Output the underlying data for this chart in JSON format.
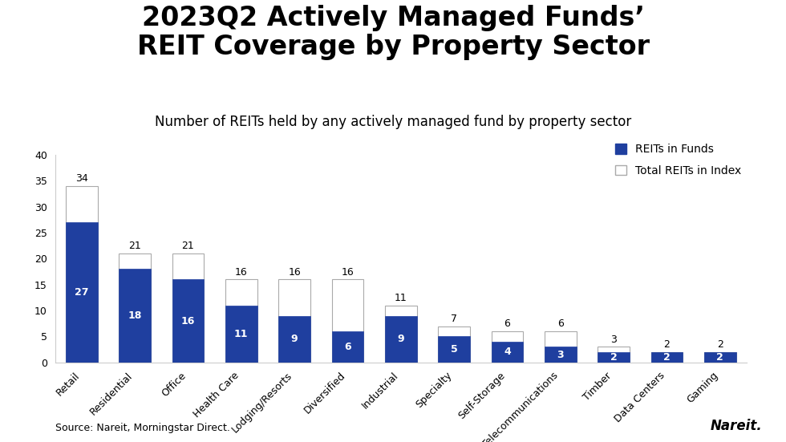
{
  "title_line1": "2023Q2 Actively Managed Funds’",
  "title_line2": "REIT Coverage by Property Sector",
  "subtitle": "Number of REITs held by any actively managed fund by property sector",
  "categories": [
    "Retail",
    "Residential",
    "Office",
    "Health Care",
    "Lodging/Resorts",
    "Diversified",
    "Industrial",
    "Specialty",
    "Self-Storage",
    "Telecommunications",
    "Timber",
    "Data Centers",
    "Gaming"
  ],
  "reits_in_funds": [
    27,
    18,
    16,
    11,
    9,
    6,
    9,
    5,
    4,
    3,
    2,
    2,
    2
  ],
  "total_reits_in_index": [
    34,
    21,
    21,
    16,
    16,
    16,
    11,
    7,
    6,
    6,
    3,
    2,
    2
  ],
  "bar_color_blue": "#1F3F9F",
  "bar_color_white": "#FFFFFF",
  "bar_edge_color": "#aaaaaa",
  "background_color": "#FFFFFF",
  "ylim": [
    0,
    40
  ],
  "yticks": [
    0,
    5,
    10,
    15,
    20,
    25,
    30,
    35,
    40
  ],
  "legend_labels": [
    "REITs in Funds",
    "Total REITs in Index"
  ],
  "source_text": "Source: Nareit, Morningstar Direct.",
  "nareit_text": "Nareit.",
  "title_fontsize": 24,
  "subtitle_fontsize": 12,
  "tick_label_fontsize": 9,
  "bar_label_fontsize": 9,
  "legend_fontsize": 10,
  "source_fontsize": 9
}
